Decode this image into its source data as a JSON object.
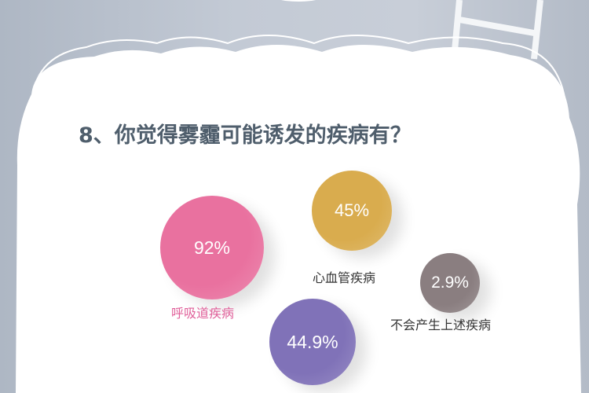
{
  "title": "8、你觉得雾霾可能诱发的疾病有？",
  "chart_data": {
    "type": "bubble",
    "title": "8、你觉得雾霾可能诱发的疾病有？",
    "categories": [
      "呼吸道疾病",
      "心血管疾病",
      "不会产生上述疾病",
      ""
    ],
    "values": [
      92,
      45,
      2.9,
      44.9
    ],
    "labels": [
      "92%",
      "45%",
      "2.9%",
      "44.9%"
    ],
    "colors": [
      "#e9719f",
      "#d9ac4e",
      "#8a7e80",
      "#8072b8"
    ],
    "label_colors": [
      "#e0609a",
      "#333333",
      "#333333",
      "#333333"
    ]
  }
}
